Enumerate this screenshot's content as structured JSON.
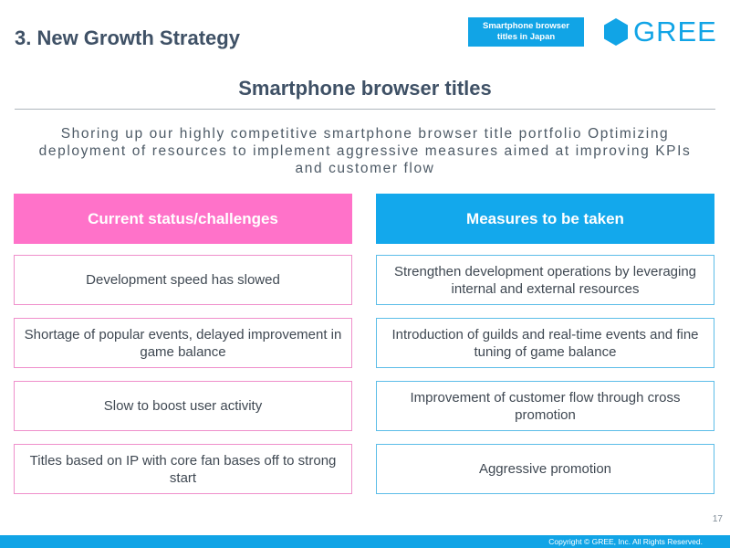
{
  "header": {
    "title": "3. New Growth Strategy",
    "tag_line1": "Smartphone browser",
    "tag_line2": "titles in Japan",
    "logo_text": "GREE"
  },
  "section": {
    "title": "Smartphone browser titles",
    "subtitle": "Shoring up our highly competitive smartphone browser title portfolio Optimizing deployment of resources to implement aggressive measures aimed at improving KPIs and customer flow"
  },
  "columns": {
    "left_header": "Current status/challenges",
    "right_header": "Measures to be taken"
  },
  "rows": [
    {
      "left": "Development speed has slowed",
      "right": "Strengthen development operations by leveraging internal and external resources"
    },
    {
      "left": "Shortage of popular events, delayed improvement in game balance",
      "right": "Introduction of guilds and real-time events and fine tuning of game balance"
    },
    {
      "left": "Slow to boost user activity",
      "right": "Improvement of customer flow through cross promotion"
    },
    {
      "left": "Titles based on IP with core fan bases off to strong start",
      "right": "Aggressive promotion"
    }
  ],
  "footer": {
    "page_number": "17",
    "copyright": "Copyright © GREE, Inc. All Rights Reserved."
  },
  "colors": {
    "accent_blue": "#11a4e6",
    "accent_pink": "#ff72c9",
    "heading": "#3f5166"
  }
}
